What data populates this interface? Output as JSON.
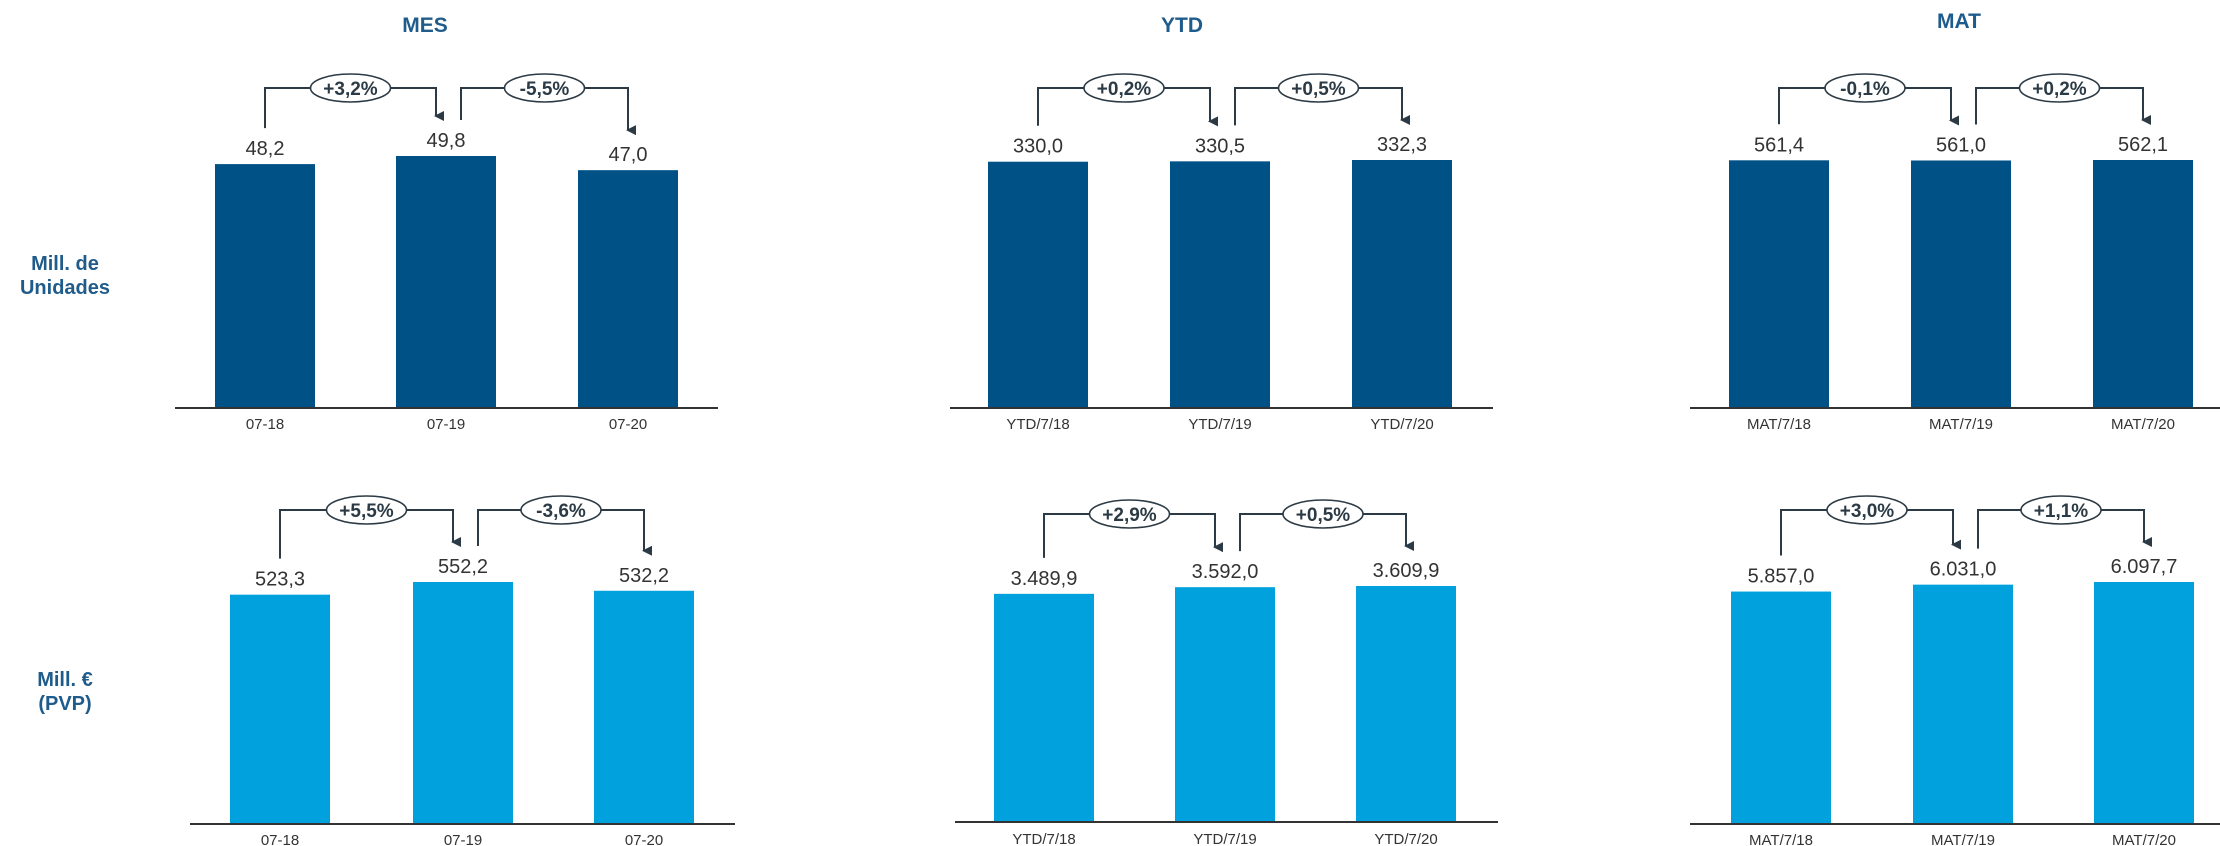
{
  "colors": {
    "units_bar": "#005186",
    "value_bar": "#00a1dc",
    "heading": "#1f5c8b",
    "axis": "#333333",
    "connector": "#2b3a44"
  },
  "column_titles": [
    "MES",
    "YTD",
    "MAT"
  ],
  "row_labels": [
    {
      "line1": "Mill. de",
      "line2": "Unidades"
    },
    {
      "line1": "Mill. €",
      "line2": "(PVP)"
    }
  ],
  "chart_data": [
    {
      "type": "bar",
      "row": "units",
      "column": "MES",
      "categories": [
        "07-18",
        "07-19",
        "07-20"
      ],
      "values": [
        48.2,
        49.8,
        47.0
      ],
      "value_labels": [
        "48,2",
        "49,8",
        "47,0"
      ],
      "changes": [
        "+3,2%",
        "-5,5%"
      ]
    },
    {
      "type": "bar",
      "row": "units",
      "column": "YTD",
      "categories": [
        "YTD/7/18",
        "YTD/7/19",
        "YTD/7/20"
      ],
      "values": [
        330.0,
        330.5,
        332.3
      ],
      "value_labels": [
        "330,0",
        "330,5",
        "332,3"
      ],
      "changes": [
        "+0,2%",
        "+0,5%"
      ]
    },
    {
      "type": "bar",
      "row": "units",
      "column": "MAT",
      "categories": [
        "MAT/7/18",
        "MAT/7/19",
        "MAT/7/20"
      ],
      "values": [
        561.4,
        561.0,
        562.1
      ],
      "value_labels": [
        "561,4",
        "561,0",
        "562,1"
      ],
      "changes": [
        "-0,1%",
        "+0,2%"
      ]
    },
    {
      "type": "bar",
      "row": "value",
      "column": "MES",
      "categories": [
        "07-18",
        "07-19",
        "07-20"
      ],
      "values": [
        523.3,
        552.2,
        532.2
      ],
      "value_labels": [
        "523,3",
        "552,2",
        "532,2"
      ],
      "changes": [
        "+5,5%",
        "-3,6%"
      ]
    },
    {
      "type": "bar",
      "row": "value",
      "column": "YTD",
      "categories": [
        "YTD/7/18",
        "YTD/7/19",
        "YTD/7/20"
      ],
      "values": [
        3489.9,
        3592.0,
        3609.9
      ],
      "value_labels": [
        "3.489,9",
        "3.592,0",
        "3.609,9"
      ],
      "changes": [
        "+2,9%",
        "+0,5%"
      ]
    },
    {
      "type": "bar",
      "row": "value",
      "column": "MAT",
      "categories": [
        "MAT/7/18",
        "MAT/7/19",
        "MAT/7/20"
      ],
      "values": [
        5857.0,
        6031.0,
        6097.7
      ],
      "value_labels": [
        "5.857,0",
        "6.031,0",
        "6.097,7"
      ],
      "changes": [
        "+3,0%",
        "+1,1%"
      ]
    }
  ]
}
